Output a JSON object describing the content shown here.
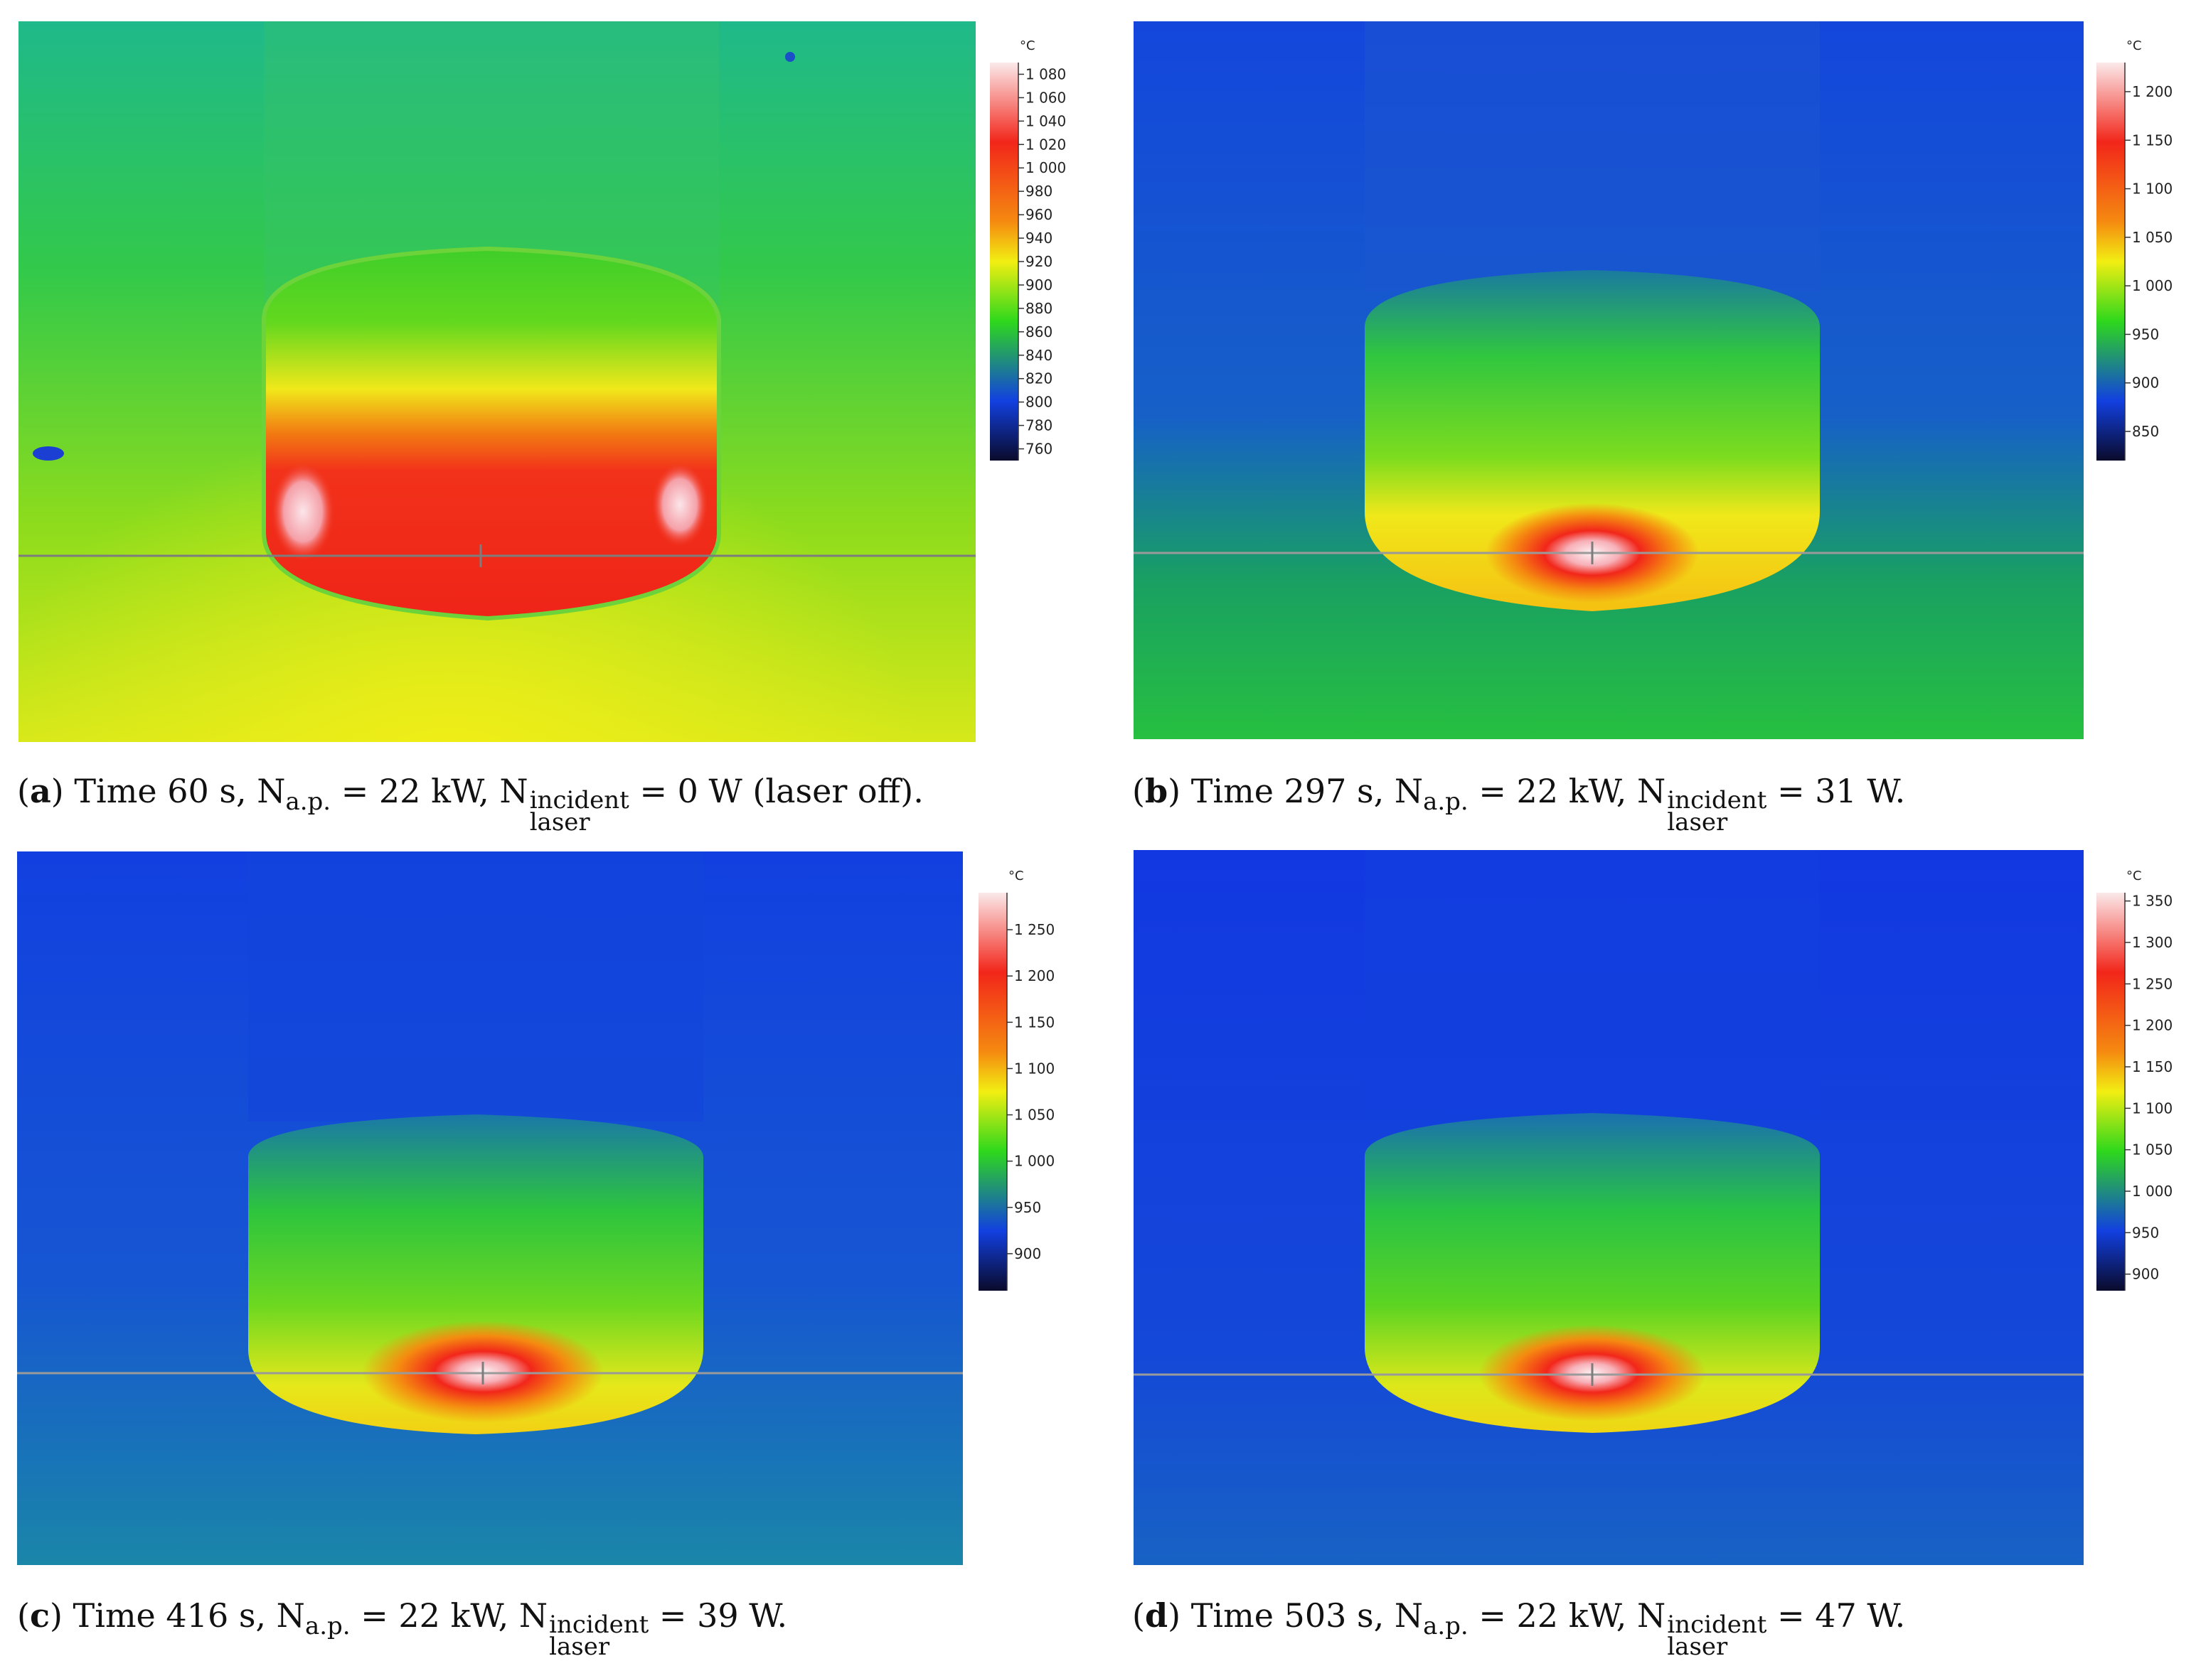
{
  "panels": [
    {
      "letter": "a",
      "caption_prefix": "Time 60 s, N",
      "nap_sub": "a.p.",
      "mid": " = 22 kW, N",
      "laser_sup": "incident",
      "laser_sub": "laser",
      "suffix": " = 0 W (laser off).",
      "scale_unit": "°C",
      "scale_ticks": [
        "1 080",
        "1 060",
        "1 040",
        "1 020",
        "1 000",
        "980",
        "960",
        "940",
        "920",
        "900",
        "880",
        "860",
        "840",
        "820",
        "800",
        "780",
        "760"
      ],
      "scale_range": [
        750,
        1090
      ],
      "background": "green"
    },
    {
      "letter": "b",
      "caption_prefix": "Time 297 s, N",
      "nap_sub": "a.p.",
      "mid": " = 22 kW, N",
      "laser_sup": "incident",
      "laser_sub": "laser",
      "suffix": " = 31 W.",
      "scale_unit": "°C",
      "scale_ticks": [
        "1 200",
        "1 150",
        "1 100",
        "1 050",
        "1 000",
        "950",
        "900",
        "850"
      ],
      "scale_range": [
        820,
        1230
      ],
      "background": "blue"
    },
    {
      "letter": "c",
      "caption_prefix": "Time 416 s, N",
      "nap_sub": "a.p.",
      "mid": " = 22 kW, N",
      "laser_sup": "incident",
      "laser_sub": "laser",
      "suffix": " = 39 W.",
      "scale_unit": "°C",
      "scale_ticks": [
        "1 250",
        "1 200",
        "1 150",
        "1 100",
        "1 050",
        "1 000",
        "950",
        "900"
      ],
      "scale_range": [
        860,
        1290
      ],
      "background": "blue"
    },
    {
      "letter": "d",
      "caption_prefix": "Time 503 s, N",
      "nap_sub": "a.p.",
      "mid": " = 22 kW, N",
      "laser_sup": "incident",
      "laser_sub": "laser",
      "suffix": " = 47 W.",
      "scale_unit": "°C",
      "scale_ticks": [
        "1 350",
        "1 300",
        "1 250",
        "1 200",
        "1 150",
        "1 100",
        "1 050",
        "1 000",
        "950",
        "900"
      ],
      "scale_range": [
        880,
        1360
      ],
      "background": "blue"
    }
  ],
  "colors": {
    "hot_white": "#fbe9ea",
    "red": "#f2261a",
    "orange": "#f58a10",
    "yellow": "#f2ee12",
    "green": "#2ed81c",
    "blue": "#1240e0",
    "dark": "#0a0a2a"
  }
}
